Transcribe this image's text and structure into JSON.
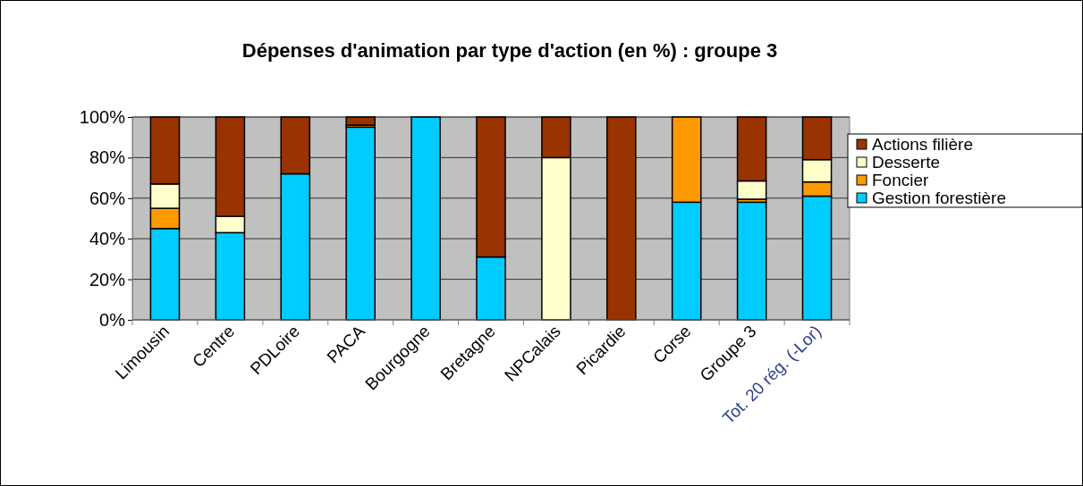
{
  "chart_data": {
    "type": "bar",
    "stacked": true,
    "title": "Dépenses d'animation par type d'action (en %) : groupe 3",
    "categories": [
      "Limousin",
      "Centre",
      "PDLoire",
      "PACA",
      "Bourgogne",
      "Bretagne",
      "NPCalais",
      "Picardie",
      "Corse",
      "Groupe 3",
      "Tot. 20 rég. (-Lor)"
    ],
    "series": [
      {
        "name": "Gestion forestière",
        "color": "#00ccff",
        "values": [
          45,
          43,
          72,
          95,
          100,
          31,
          0,
          0,
          58,
          58,
          61
        ]
      },
      {
        "name": "Foncier",
        "color": "#ff9900",
        "values": [
          10,
          0,
          0,
          1,
          0,
          0,
          0,
          0,
          42,
          1.5,
          7
        ]
      },
      {
        "name": "Desserte",
        "color": "#ffffcc",
        "values": [
          12,
          8,
          0,
          0,
          0,
          0,
          80,
          0,
          0,
          9,
          11
        ]
      },
      {
        "name": "Actions filière",
        "color": "#993300",
        "values": [
          33,
          49,
          28,
          4,
          0,
          69,
          20,
          100,
          0,
          31.5,
          21
        ]
      }
    ],
    "ylim": [
      0,
      100
    ],
    "yticks": [
      {
        "value": 0,
        "label": "0%"
      },
      {
        "value": 20,
        "label": "20%"
      },
      {
        "value": 40,
        "label": "40%"
      },
      {
        "value": 60,
        "label": "60%"
      },
      {
        "value": 80,
        "label": "80%"
      },
      {
        "value": 100,
        "label": "100%"
      }
    ],
    "grid": "y",
    "legend": "right"
  }
}
